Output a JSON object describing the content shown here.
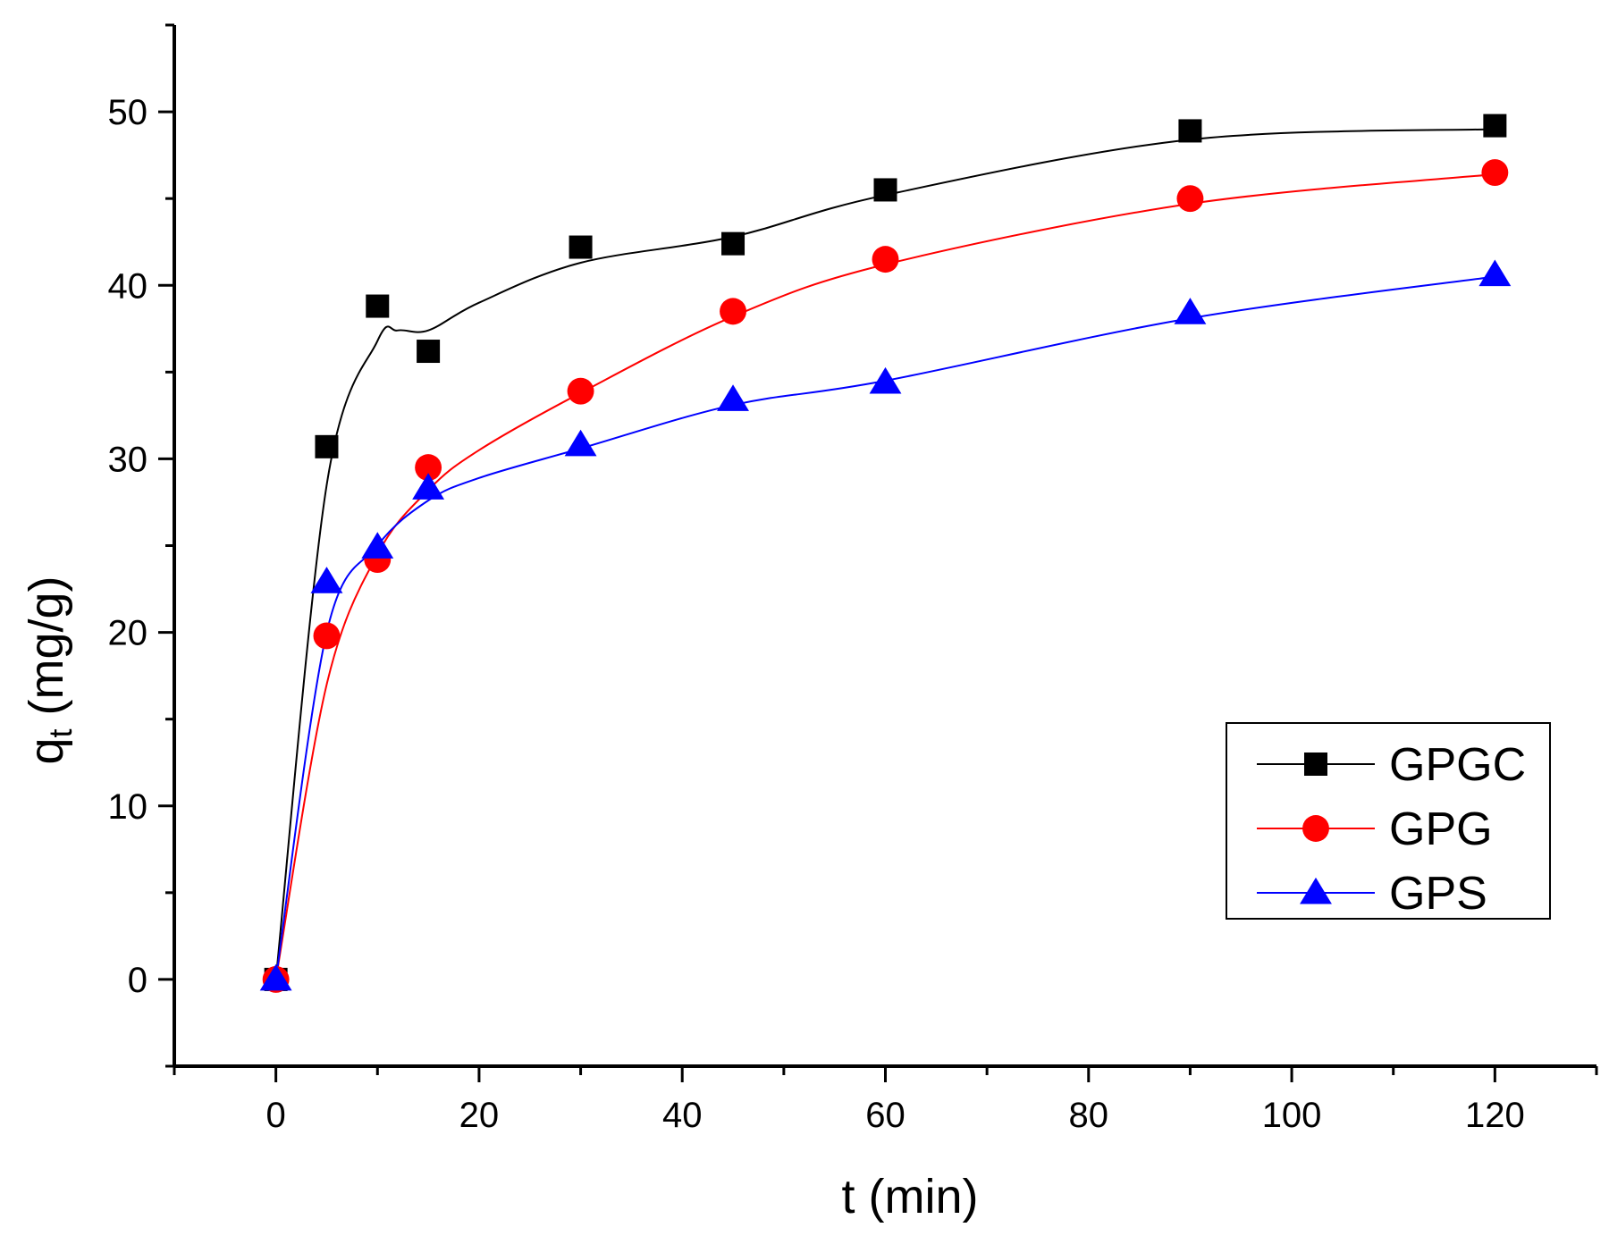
{
  "chart_data": {
    "type": "line",
    "xlabel": "t (min)",
    "ylabel_main": "q",
    "ylabel_sub": "t",
    "ylabel_unit": " (mg/g)",
    "xlim": [
      -10,
      130
    ],
    "ylim": [
      -5,
      55
    ],
    "xticks_major": [
      0,
      20,
      40,
      60,
      80,
      100,
      120
    ],
    "xticks_minor": [
      -10,
      10,
      30,
      50,
      70,
      90,
      110,
      130
    ],
    "yticks_major": [
      0,
      10,
      20,
      30,
      40,
      50
    ],
    "yticks_minor": [
      -5,
      5,
      15,
      25,
      35,
      45,
      55
    ],
    "x": [
      0,
      5,
      10,
      15,
      30,
      45,
      60,
      90,
      120
    ],
    "series": [
      {
        "name": "GPGC",
        "color": "#000000",
        "marker": "square",
        "values": [
          0,
          30.7,
          38.8,
          36.2,
          42.2,
          42.4,
          45.5,
          48.9,
          49.2
        ],
        "fit_x": [
          0,
          5,
          10,
          12,
          15,
          20,
          30,
          45,
          60,
          90,
          120
        ],
        "fit_y": [
          0,
          28.5,
          36.8,
          37.4,
          37.4,
          39.0,
          41.3,
          42.8,
          45.2,
          48.4,
          49.0
        ]
      },
      {
        "name": "GPG",
        "color": "#ff0000",
        "marker": "circle",
        "values": [
          0,
          19.8,
          24.2,
          29.5,
          33.9,
          38.5,
          41.5,
          45.0,
          46.5
        ],
        "fit_x": [
          0,
          5,
          10,
          15,
          20,
          30,
          45,
          60,
          90,
          120
        ],
        "fit_y": [
          0,
          17.0,
          24.5,
          28.2,
          30.5,
          33.8,
          38.2,
          41.2,
          44.7,
          46.4
        ]
      },
      {
        "name": "GPS",
        "color": "#0000ff",
        "marker": "triangle",
        "values": [
          0,
          22.9,
          24.9,
          28.3,
          30.8,
          33.4,
          34.4,
          38.4,
          40.6
        ],
        "fit_x": [
          0,
          5,
          10,
          15,
          20,
          30,
          45,
          60,
          90,
          120
        ],
        "fit_y": [
          0,
          20.0,
          25.0,
          27.6,
          28.9,
          30.6,
          33.1,
          34.5,
          38.1,
          40.5
        ]
      }
    ],
    "legend_position": "lower-right"
  }
}
